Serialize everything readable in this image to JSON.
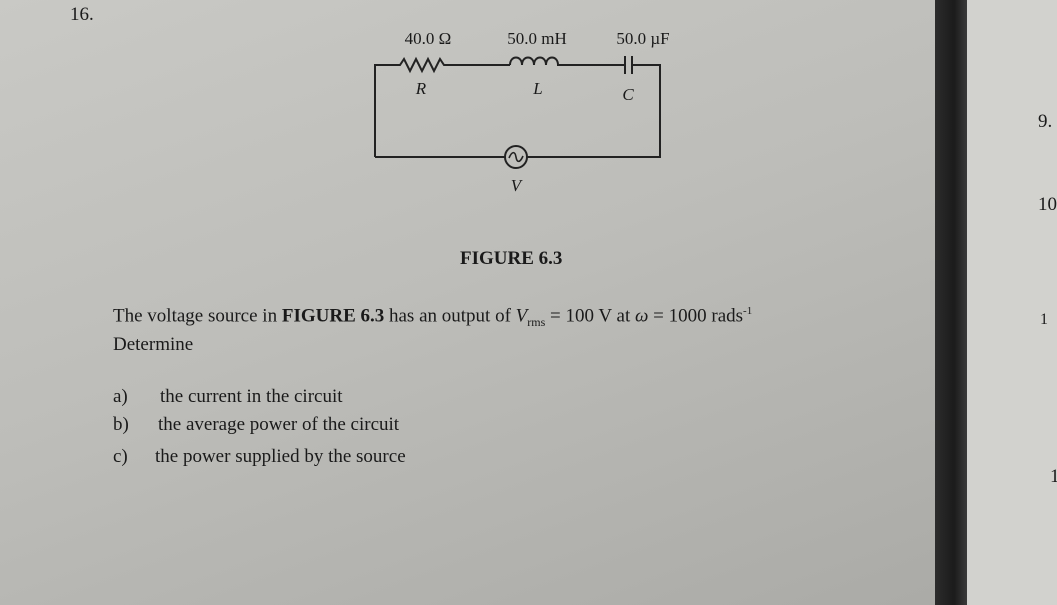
{
  "question": {
    "number": "16.",
    "figure": {
      "resistor_value": "40.0 Ω",
      "inductor_value": "50.0 mH",
      "capacitor_value": "50.0 µF",
      "resistor_symbol": "R",
      "inductor_symbol": "L",
      "capacitor_symbol": "C",
      "source_symbol": "V",
      "caption": "FIGURE 6.3"
    },
    "statement": {
      "part1": "The voltage source in ",
      "figure_ref": "FIGURE 6.3",
      "part2": " has an output of ",
      "v_symbol": "V",
      "v_subscript": "rms",
      "part3": " = 100 V at ",
      "omega": "ω",
      "part4": " = 1000 rads",
      "exponent": "-1"
    },
    "instruction": "Determine",
    "parts": [
      {
        "label": "a)",
        "text": "the current in the circuit"
      },
      {
        "label": "b)",
        "text": "the average power of the circuit"
      },
      {
        "label": "c)",
        "text": "the power supplied by the source"
      }
    ]
  },
  "margin": [
    "9.",
    "10",
    "1",
    "1"
  ]
}
